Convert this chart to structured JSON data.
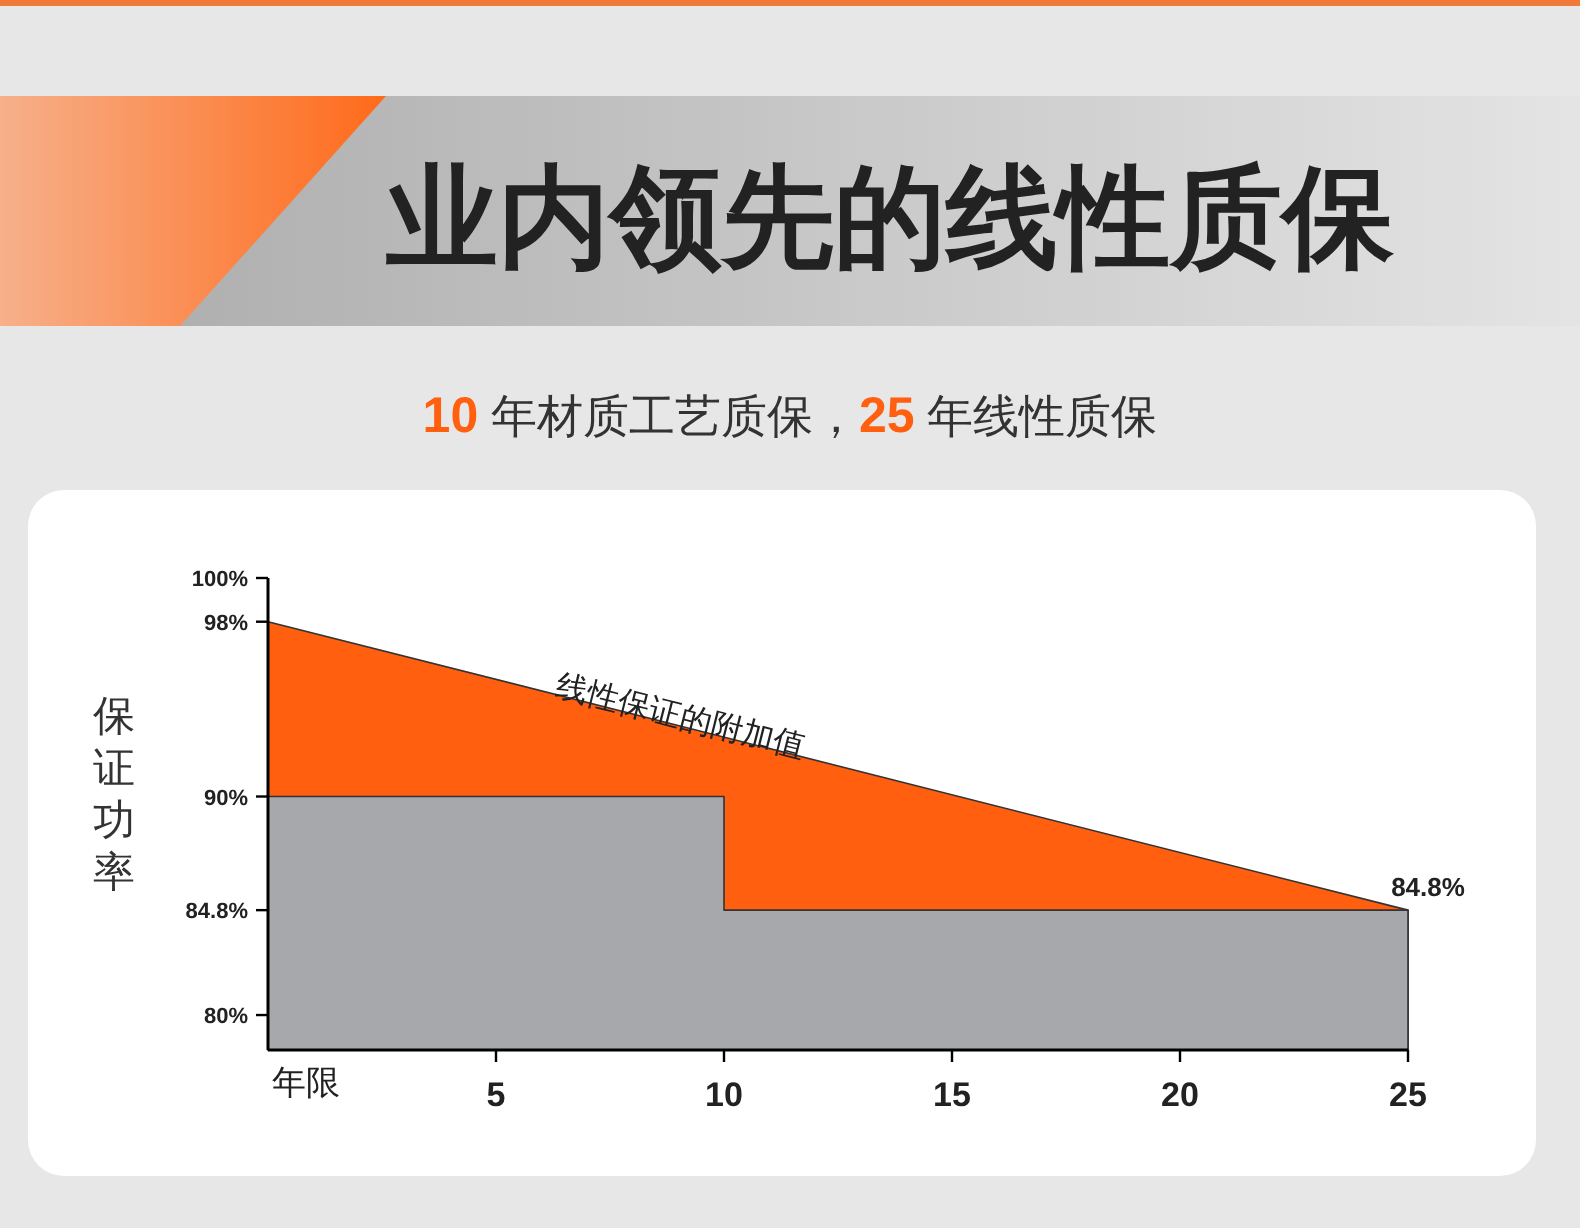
{
  "chart_data": {
    "type": "area",
    "title": "业内领先的线性质保",
    "subtitle": "10 年材质工艺质保，25 年线性质保",
    "ylabel": "保证功率",
    "xlabel": "年限",
    "series": [
      {
        "color": "#ff5f0f",
        "x": [
          0,
          25
        ],
        "values": [
          98,
          84.8
        ]
      },
      {
        "color": "#a7a8ab",
        "x": [
          0,
          10,
          10,
          25
        ],
        "values": [
          90,
          90,
          84.8,
          84.8
        ]
      }
    ],
    "xlim": [
      0,
      25
    ],
    "ylim": [
      78.4,
      100
    ],
    "xticks": [
      5,
      10,
      15,
      20,
      25
    ],
    "yticks": [
      {
        "value": 80,
        "label": "80%"
      },
      {
        "value": 84.8,
        "label": "84.8%"
      },
      {
        "value": 90,
        "label": "90%"
      },
      {
        "value": 98,
        "label": "98%"
      },
      {
        "value": 100,
        "label": "100%"
      }
    ],
    "annotations": [
      {
        "text": "线性保证的附加值",
        "x": 9,
        "y": 93.2
      },
      {
        "text": "84.8%",
        "x": 25,
        "y": 84.8
      }
    ],
    "grid": false
  }
}
